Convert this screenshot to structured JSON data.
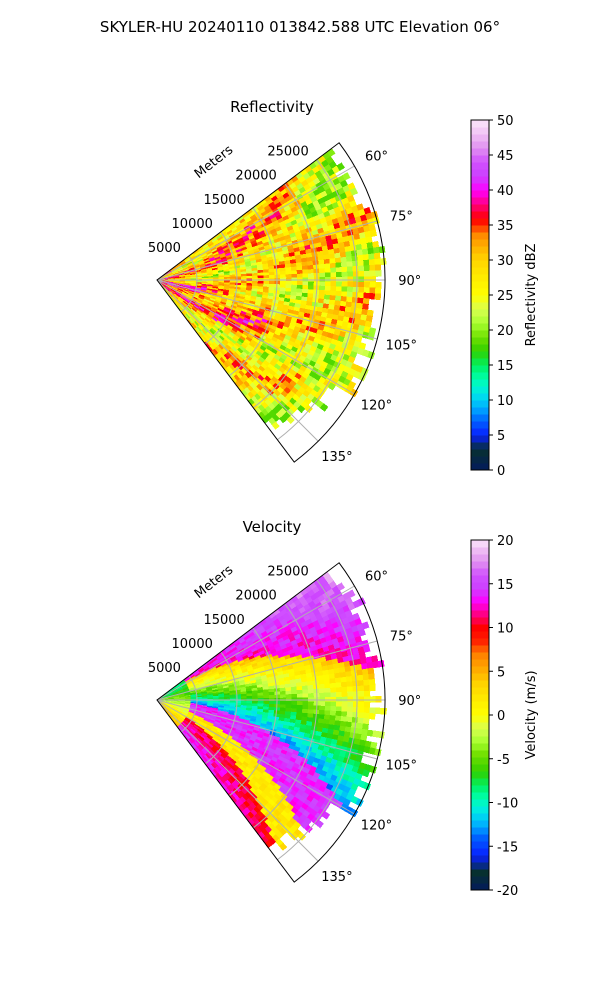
{
  "figure": {
    "title": "SKYLER-HU  20240110  013842.588 UTC Elevation 06°"
  },
  "chart_data": [
    {
      "type": "heatmap",
      "subtype": "polar-sector",
      "title": "Reflectivity",
      "range_label": "Meters",
      "range_ticks": [
        5000,
        10000,
        15000,
        20000,
        25000
      ],
      "azimuth_ticks": [
        "60°",
        "75°",
        "90°",
        "105°",
        "120°",
        "135°"
      ],
      "azimuth_ticks_deg": [
        60,
        75,
        90,
        105,
        120,
        135
      ],
      "azimuth_range_deg": [
        53,
        143
      ],
      "range_max_m": 28500,
      "grid": true,
      "pattern": "reflectivity",
      "colorbar": {
        "label": "Reflectivity dBZ",
        "min": 0,
        "max": 50,
        "ticks": [
          0,
          5,
          10,
          15,
          20,
          25,
          30,
          35,
          40,
          45,
          50
        ],
        "stops": [
          [
            0,
            "#041b5c"
          ],
          [
            3,
            "#063030"
          ],
          [
            5,
            "#0820ff"
          ],
          [
            7,
            "#0060ff"
          ],
          [
            9,
            "#00b0ff"
          ],
          [
            11,
            "#00e8e8"
          ],
          [
            13,
            "#00ffb0"
          ],
          [
            15,
            "#00f060"
          ],
          [
            17,
            "#30d000"
          ],
          [
            19,
            "#70e000"
          ],
          [
            21,
            "#a8ff30"
          ],
          [
            23,
            "#d8ff50"
          ],
          [
            25,
            "#ffff00"
          ],
          [
            27,
            "#fff000"
          ],
          [
            30,
            "#ffd500"
          ],
          [
            32,
            "#ffb000"
          ],
          [
            34,
            "#ff8000"
          ],
          [
            35,
            "#ff2000"
          ],
          [
            36,
            "#ff0000"
          ],
          [
            38,
            "#ff0080"
          ],
          [
            40,
            "#ff00ff"
          ],
          [
            42,
            "#cc40ff"
          ],
          [
            44,
            "#d050ff"
          ],
          [
            46,
            "#e090f0"
          ],
          [
            48,
            "#f0c0f4"
          ],
          [
            50,
            "#fbe6fa"
          ]
        ]
      }
    },
    {
      "type": "heatmap",
      "subtype": "polar-sector",
      "title": "Velocity",
      "range_label": "Meters",
      "range_ticks": [
        5000,
        10000,
        15000,
        20000,
        25000
      ],
      "azimuth_ticks": [
        "60°",
        "75°",
        "90°",
        "105°",
        "120°",
        "135°"
      ],
      "azimuth_ticks_deg": [
        60,
        75,
        90,
        105,
        120,
        135
      ],
      "azimuth_range_deg": [
        53,
        143
      ],
      "range_max_m": 28500,
      "grid": true,
      "pattern": "velocity",
      "colorbar": {
        "label": "Velocity (m/s)",
        "min": -20,
        "max": 20,
        "ticks": [
          -20,
          -15,
          -10,
          -5,
          0,
          5,
          10,
          15,
          20
        ],
        "stops": [
          [
            -20,
            "#041b5c"
          ],
          [
            -18,
            "#063030"
          ],
          [
            -16,
            "#0820ff"
          ],
          [
            -14,
            "#0060ff"
          ],
          [
            -12.5,
            "#00b0ff"
          ],
          [
            -11,
            "#00e8e8"
          ],
          [
            -9.5,
            "#00ffb0"
          ],
          [
            -8,
            "#00f060"
          ],
          [
            -6.5,
            "#30d000"
          ],
          [
            -4.5,
            "#70e000"
          ],
          [
            -3,
            "#a8ff30"
          ],
          [
            -1.5,
            "#d8ff50"
          ],
          [
            0,
            "#ffff00"
          ],
          [
            1.5,
            "#fff000"
          ],
          [
            3.5,
            "#ffd500"
          ],
          [
            5,
            "#ffb000"
          ],
          [
            7,
            "#ff8000"
          ],
          [
            8.5,
            "#ff2000"
          ],
          [
            10,
            "#ff0000"
          ],
          [
            11.5,
            "#ff0080"
          ],
          [
            13,
            "#ff00ff"
          ],
          [
            14.5,
            "#cc40ff"
          ],
          [
            16,
            "#d050ff"
          ],
          [
            17.5,
            "#e090f0"
          ],
          [
            19,
            "#f0c0f4"
          ],
          [
            20,
            "#fbe6fa"
          ]
        ]
      }
    }
  ]
}
